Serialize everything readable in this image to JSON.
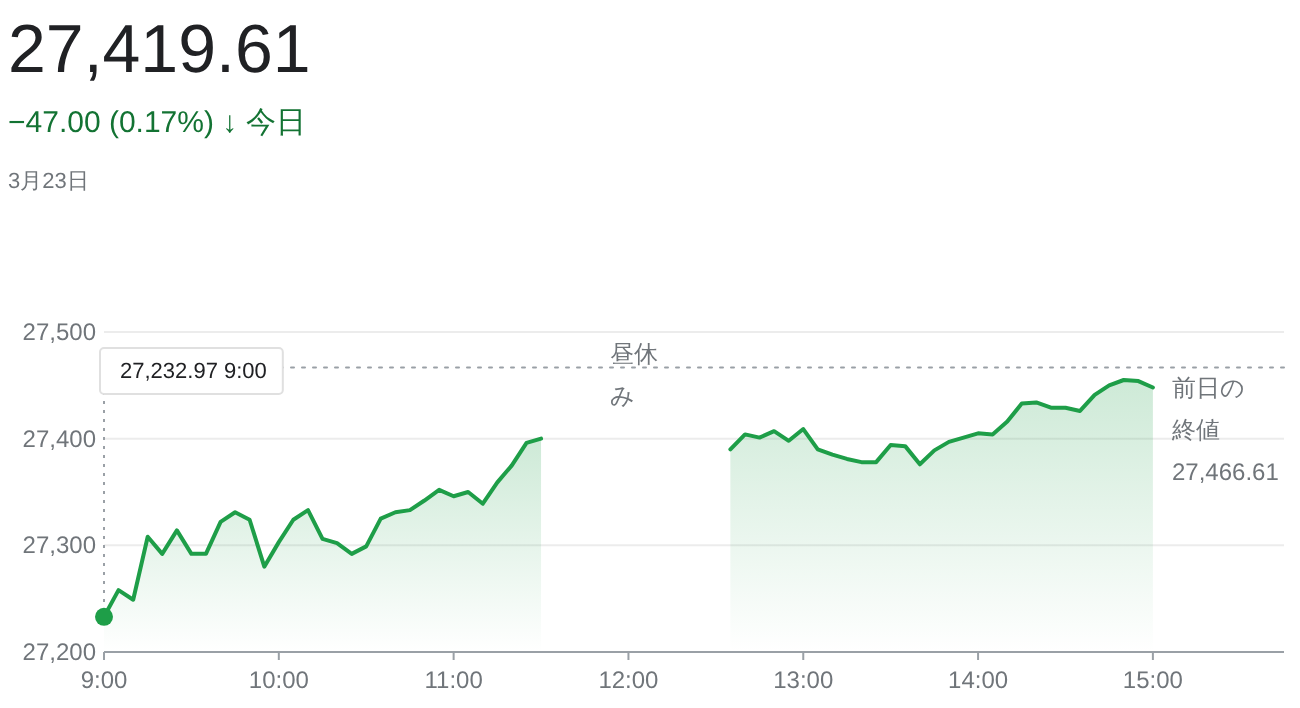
{
  "chart_data": {
    "type": "area",
    "title": "27,419.61",
    "subtitle": "−47.00 (0.17%) ↓ 今日",
    "annotations": [
      "3月23日",
      "27,232.97 9:00",
      "昼休み",
      "27,466.61"
    ],
    "series": [
      {
        "color": "#1e9e48",
        "x": [
          9.0,
          9.083,
          9.167,
          9.25,
          9.333,
          9.417,
          9.5,
          9.583,
          9.667,
          9.75,
          9.833,
          9.917,
          10.0,
          10.083,
          10.167,
          10.25,
          10.333,
          10.417,
          10.5,
          10.583,
          10.667,
          10.75,
          10.833,
          10.917,
          11.0,
          11.083,
          11.167,
          11.25,
          11.333,
          11.417,
          11.5
        ],
        "values": [
          27233,
          27258,
          27249,
          27308,
          27292,
          27314,
          27292,
          27292,
          27322,
          27331,
          27324,
          27280,
          27303,
          27324,
          27333,
          27306,
          27302,
          27292,
          27299,
          27325,
          27331,
          27333,
          27342,
          27352,
          27346,
          27350,
          27339,
          27359,
          27375,
          27396,
          27400
        ]
      },
      {
        "color": "#1e9e48",
        "x": [
          12.583,
          12.667,
          12.75,
          12.833,
          12.917,
          13.0,
          13.083,
          13.167,
          13.25,
          13.333,
          13.417,
          13.5,
          13.583,
          13.667,
          13.75,
          13.833,
          13.917,
          14.0,
          14.083,
          14.167,
          14.25,
          14.333,
          14.417,
          14.5,
          14.583,
          14.667,
          14.75,
          14.833,
          14.917,
          15.0
        ],
        "values": [
          27390,
          27404,
          27401,
          27407,
          27398,
          27409,
          27390,
          27385,
          27381,
          27378,
          27378,
          27394,
          27393,
          27376,
          27389,
          27397,
          27401,
          27405,
          27404,
          27416,
          27433,
          27434,
          27429,
          27429,
          27426,
          27441,
          27450,
          27455,
          27454,
          27448
        ]
      }
    ],
    "xlim": [
      9,
      15.75
    ],
    "xticks": [
      {
        "value": 9,
        "label": "9:00"
      },
      {
        "value": 10,
        "label": "10:00"
      },
      {
        "value": 11,
        "label": "11:00"
      },
      {
        "value": 12,
        "label": "12:00"
      },
      {
        "value": 13,
        "label": "13:00"
      },
      {
        "value": 14,
        "label": "14:00"
      },
      {
        "value": 15,
        "label": "15:00"
      }
    ],
    "ylim": [
      27200,
      27500
    ],
    "yticks": [
      {
        "value": 27200,
        "label": "27,200"
      },
      {
        "value": 27300,
        "label": "27,300"
      },
      {
        "value": 27400,
        "label": "27,400"
      },
      {
        "value": 27500,
        "label": "27,500"
      }
    ],
    "grid": "y",
    "ref_lines": [
      {
        "axis": "y",
        "value": 27466.61,
        "label": "前日の終値",
        "color": "#9aa0a6",
        "line_style": "dotted"
      }
    ]
  }
}
